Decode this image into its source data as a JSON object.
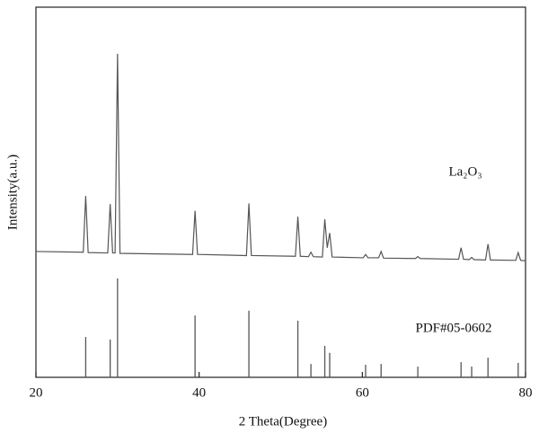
{
  "chart_data": {
    "type": "line",
    "xlabel": "2 Theta(Degree)",
    "ylabel": "Intensity(a.u.)",
    "xlim": [
      20,
      80
    ],
    "xticks": [
      20,
      40,
      60,
      80
    ],
    "ylim": [
      0,
      100
    ],
    "annotations": [
      "La₂O₃",
      "PDF#05-0602"
    ],
    "series": [
      {
        "type": "line",
        "color": "#555555",
        "x": [
          20,
          25.8,
          26.1,
          26.4,
          28.8,
          29.1,
          29.4,
          29.7,
          30.0,
          30.3,
          39.2,
          39.5,
          39.8,
          45.8,
          46.1,
          46.4,
          51.8,
          52.1,
          52.4,
          53.4,
          53.7,
          54.0,
          55.1,
          55.4,
          55.7,
          56.0,
          56.3,
          60.1,
          60.4,
          60.7,
          62.0,
          62.3,
          62.6,
          66.5,
          66.8,
          67.1,
          71.8,
          72.1,
          72.4,
          73.1,
          73.4,
          73.7,
          75.1,
          75.4,
          75.7,
          78.8,
          79.1,
          79.4,
          80
        ],
        "values": [
          34,
          33.8,
          49,
          33.7,
          33.6,
          46.8,
          33.6,
          33.6,
          87.4,
          33.5,
          33.2,
          45,
          33.2,
          32.9,
          47,
          32.9,
          32.7,
          43.4,
          32.7,
          32.6,
          33.8,
          32.6,
          32.5,
          42.7,
          35,
          39,
          32.5,
          32.3,
          33.2,
          32.3,
          32.3,
          34,
          32.2,
          32.1,
          32.6,
          32.1,
          31.9,
          35,
          31.9,
          31.8,
          32.4,
          31.8,
          31.7,
          36,
          31.7,
          31.6,
          33.7,
          31.6,
          31.5
        ]
      },
      {
        "type": "stem",
        "color": "#555555",
        "x": [
          26.1,
          29.1,
          30.0,
          39.5,
          46.1,
          52.1,
          53.7,
          55.4,
          56.0,
          60.4,
          62.3,
          66.8,
          72.1,
          73.4,
          75.4,
          79.1
        ],
        "values": [
          10.9,
          10.2,
          26.7,
          16.7,
          18,
          15.3,
          3.6,
          8.5,
          6.6,
          3.4,
          3.6,
          2.9,
          4.1,
          2.9,
          5.3,
          3.9
        ]
      }
    ]
  }
}
